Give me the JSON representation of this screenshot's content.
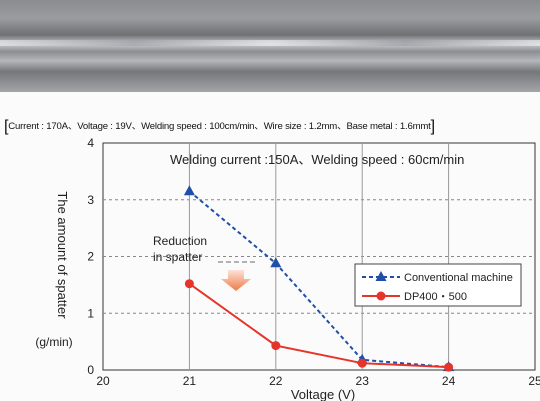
{
  "photo": {
    "description_icon": "weld-bead-photo"
  },
  "caption": "Current : 170A、Voltage : 19V、Welding speed : 100cm/min、Wire size : 1.2mm、Base metal : 1.6mmt",
  "chart_data": {
    "type": "line",
    "title": "Welding current :150A、Welding speed : 60cm/min",
    "xlabel": "Voltage (V)",
    "ylabel": "The amount of spatter",
    "ylabel_unit": "(g/min)",
    "xlim": [
      20,
      25
    ],
    "ylim": [
      0,
      4
    ],
    "xticks": [
      20,
      21,
      22,
      23,
      24,
      25
    ],
    "yticks": [
      0,
      1,
      2,
      3,
      4
    ],
    "grid": true,
    "legend_position": "right",
    "annotation": "Reduction\nin spatter",
    "series": [
      {
        "name": "Conventional machine",
        "color": "#1f4fa8",
        "marker": "triangle",
        "dash": true,
        "x": [
          21,
          22,
          23,
          24
        ],
        "y": [
          3.15,
          1.88,
          0.18,
          0.05
        ]
      },
      {
        "name": "DP400・500",
        "color": "#e5342a",
        "marker": "circle",
        "dash": false,
        "x": [
          21,
          22,
          23,
          24
        ],
        "y": [
          1.52,
          0.43,
          0.12,
          0.05
        ]
      }
    ]
  }
}
